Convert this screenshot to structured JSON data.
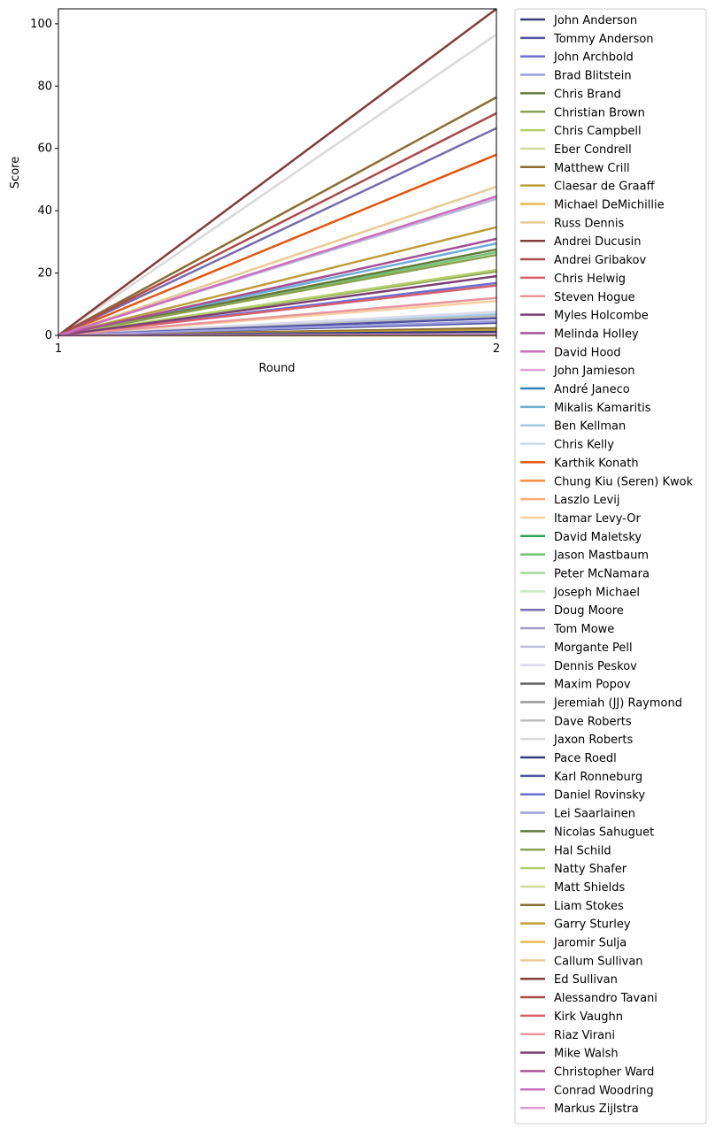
{
  "chart_data": {
    "type": "line",
    "xlabel": "Round",
    "ylabel": "Score",
    "x": [
      1,
      2
    ],
    "xticks": [
      "1",
      "2"
    ],
    "xlim": [
      1,
      2
    ],
    "ylim": [
      0,
      104.8
    ],
    "yticks": [
      "0",
      "20",
      "40",
      "60",
      "80",
      "100"
    ],
    "grid": false,
    "legend_placement": "outside-right",
    "series": [
      {
        "name": "John Anderson",
        "color": "#393b79",
        "values": [
          0,
          0
        ]
      },
      {
        "name": "Tommy Anderson",
        "color": "#5254a3",
        "values": [
          0,
          4.0
        ]
      },
      {
        "name": "John Archbold",
        "color": "#6b6ecf",
        "values": [
          0,
          0
        ]
      },
      {
        "name": "Brad Blitstein",
        "color": "#9c9ede",
        "values": [
          0,
          0
        ]
      },
      {
        "name": "Chris Brand",
        "color": "#637939",
        "values": [
          0,
          0
        ]
      },
      {
        "name": "Christian Brown",
        "color": "#8ca252",
        "values": [
          0,
          20.5
        ]
      },
      {
        "name": "Chris Campbell",
        "color": "#b5cf6b",
        "values": [
          0,
          0
        ]
      },
      {
        "name": "Eber Condrell",
        "color": "#cedb9c",
        "values": [
          0,
          0
        ]
      },
      {
        "name": "Matthew Crill",
        "color": "#8c6d31",
        "values": [
          0,
          2.3
        ]
      },
      {
        "name": "Claesar de Graaff",
        "color": "#bd9e39",
        "values": [
          0,
          1.7
        ]
      },
      {
        "name": "Michael DeMichillie",
        "color": "#e7ba52",
        "values": [
          0,
          0
        ]
      },
      {
        "name": "Russ Dennis",
        "color": "#e7cb94",
        "values": [
          0,
          0
        ]
      },
      {
        "name": "Andrei Ducusin",
        "color": "#843c39",
        "values": [
          0,
          0
        ]
      },
      {
        "name": "Andrei Gribakov",
        "color": "#ad494a",
        "values": [
          0,
          0
        ]
      },
      {
        "name": "Chris Helwig",
        "color": "#d6616b",
        "values": [
          0,
          0
        ]
      },
      {
        "name": "Steven Hogue",
        "color": "#e7969c",
        "values": [
          0,
          0
        ]
      },
      {
        "name": "Myles Holcombe",
        "color": "#7b4173",
        "values": [
          0,
          0
        ]
      },
      {
        "name": "Melinda Holley",
        "color": "#a55194",
        "values": [
          0,
          0
        ]
      },
      {
        "name": "David Hood",
        "color": "#ce6dbd",
        "values": [
          0,
          0
        ]
      },
      {
        "name": "John Jamieson",
        "color": "#de9ed6",
        "values": [
          0,
          0
        ]
      },
      {
        "name": "André Janeco",
        "color": "#3182bd",
        "values": [
          0,
          0
        ]
      },
      {
        "name": "Mikalis Kamaritis",
        "color": "#6baed6",
        "values": [
          0,
          29.5
        ]
      },
      {
        "name": "Ben Kellman",
        "color": "#9ecae1",
        "values": [
          0,
          6.8
        ]
      },
      {
        "name": "Chris Kelly",
        "color": "#c6dbef",
        "values": [
          0,
          7.4
        ]
      },
      {
        "name": "Karthik Konath",
        "color": "#e6550d",
        "values": [
          0,
          58
        ]
      },
      {
        "name": "Chung Kiu (Seren) Kwok",
        "color": "#fd8d3c",
        "values": [
          0,
          0
        ]
      },
      {
        "name": "Laszlo Levij",
        "color": "#fdae6b",
        "values": [
          0,
          0
        ]
      },
      {
        "name": "Itamar Levy-Or",
        "color": "#fdd0a2",
        "values": [
          0,
          11
        ]
      },
      {
        "name": "David Maletsky",
        "color": "#31a354",
        "values": [
          0,
          0
        ]
      },
      {
        "name": "Jason Mastbaum",
        "color": "#74c476",
        "values": [
          0,
          26.7
        ]
      },
      {
        "name": "Peter McNamara",
        "color": "#a1d99b",
        "values": [
          0,
          0
        ]
      },
      {
        "name": "Joseph Michael",
        "color": "#c7e9c0",
        "values": [
          0,
          0
        ]
      },
      {
        "name": "Doug Moore",
        "color": "#756bb1",
        "values": [
          0,
          66.5
        ]
      },
      {
        "name": "Tom Mowe",
        "color": "#9e9ac8",
        "values": [
          0,
          0
        ]
      },
      {
        "name": "Morgante Pell",
        "color": "#bcbddc",
        "values": [
          0,
          43.8
        ]
      },
      {
        "name": "Dennis Peskov",
        "color": "#dadaeb",
        "values": [
          0,
          7.6
        ]
      },
      {
        "name": "Maxim Popov",
        "color": "#636363",
        "values": [
          0,
          0
        ]
      },
      {
        "name": "Jeremiah (JJ) Raymond",
        "color": "#969696",
        "values": [
          0,
          0
        ]
      },
      {
        "name": "Dave Roberts",
        "color": "#bdbdbd",
        "values": [
          0,
          6.2
        ]
      },
      {
        "name": "Jaxon Roberts",
        "color": "#d9d9d9",
        "values": [
          0,
          96.6
        ]
      },
      {
        "name": "Pace Roedl",
        "color": "#393b79",
        "values": [
          0,
          1.1
        ]
      },
      {
        "name": "Karl Ronneburg",
        "color": "#5254a3",
        "values": [
          0,
          5.5
        ]
      },
      {
        "name": "Daniel Rovinsky",
        "color": "#6b6ecf",
        "values": [
          0,
          16.8
        ]
      },
      {
        "name": "Lei Saarlainen",
        "color": "#9c9ede",
        "values": [
          0,
          4.5
        ]
      },
      {
        "name": "Nicolas Sahuguet",
        "color": "#637939",
        "values": [
          0,
          27.6
        ]
      },
      {
        "name": "Hal Schild",
        "color": "#8ca252",
        "values": [
          0,
          25.8
        ]
      },
      {
        "name": "Natty Shafer",
        "color": "#b5cf6b",
        "values": [
          0,
          21
        ]
      },
      {
        "name": "Matt Shields",
        "color": "#cedb9c",
        "values": [
          0,
          0
        ]
      },
      {
        "name": "Liam Stokes",
        "color": "#8c6d31",
        "values": [
          0,
          76.4
        ]
      },
      {
        "name": "Garry Sturley",
        "color": "#bd9e39",
        "values": [
          0,
          34.7
        ]
      },
      {
        "name": "Jaromir Sulja",
        "color": "#e7ba52",
        "values": [
          0,
          0
        ]
      },
      {
        "name": "Callum Sullivan",
        "color": "#e7cb94",
        "values": [
          0,
          47.7
        ]
      },
      {
        "name": "Ed Sullivan",
        "color": "#843c39",
        "values": [
          0,
          104.8
        ]
      },
      {
        "name": "Alessandro Tavani",
        "color": "#ad494a",
        "values": [
          0,
          71.3
        ]
      },
      {
        "name": "Kirk Vaughn",
        "color": "#d6616b",
        "values": [
          0,
          16
        ]
      },
      {
        "name": "Riaz Virani",
        "color": "#e7969c",
        "values": [
          0,
          12
        ]
      },
      {
        "name": "Mike Walsh",
        "color": "#7b4173",
        "values": [
          0,
          19
        ]
      },
      {
        "name": "Christopher Ward",
        "color": "#a55194",
        "values": [
          0,
          31
        ]
      },
      {
        "name": "Conrad Woodring",
        "color": "#ce6dbd",
        "values": [
          0,
          44.6
        ]
      },
      {
        "name": "Markus Zijlstra",
        "color": "#de9ed6",
        "values": [
          0,
          0.3
        ]
      }
    ]
  }
}
